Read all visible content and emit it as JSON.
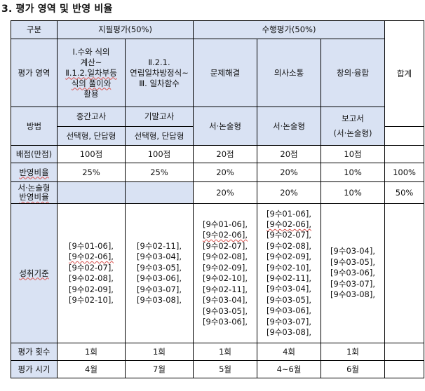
{
  "heading": "3. 평가 영역 및 반영 비율",
  "headers": {
    "division": "구분",
    "written": "지필평가(50%)",
    "performance": "수행평가(50%)",
    "total": "합계"
  },
  "area": {
    "label": "평가 영역",
    "written1": [
      "Ⅰ.수와 식의",
      "계산~",
      "Ⅱ.1.2.일차부등",
      "식의 풀이와",
      "활용"
    ],
    "written2": [
      "Ⅱ.2.1.",
      "연립일차방정식~",
      "Ⅲ. 일차함수"
    ],
    "perf1": "문제해결",
    "perf2": "의사소통",
    "perf3": "창의·융합"
  },
  "method": {
    "label": "방법",
    "midterm": "중간고사",
    "final": "기말고사",
    "written_type": "선택형, 단답형",
    "perf1": "서·논술형",
    "perf2": "서·논술형",
    "perf3": [
      "보고서",
      "(서·논술형)"
    ]
  },
  "score": {
    "label": "배점(만점)",
    "values": [
      "100점",
      "100점",
      "20점",
      "20점",
      "10점"
    ]
  },
  "ratio": {
    "label": "반영비율",
    "values": [
      "25%",
      "25%",
      "20%",
      "20%",
      "10%"
    ],
    "total": "100%"
  },
  "essay_ratio": {
    "label": [
      "서·논술형",
      "반영비율"
    ],
    "values": [
      "20%",
      "20%",
      "10%"
    ],
    "total": "50%"
  },
  "standards": {
    "label": "성취기준",
    "col1": [
      "[9수01-06],",
      "[9수02-06],",
      "[9수02-07],",
      "[9수02-08],",
      "[9수02-09],",
      "[9수02-10],"
    ],
    "col2": [
      "[9수02-11],",
      "[9수03-04],",
      "[9수03-05],",
      "[9수03-06],",
      "[9수03-07],",
      "[9수03-08],"
    ],
    "col3": [
      "[9수01-06],",
      "[9수02-06],",
      "[9수02-07],",
      "[9수02-08],",
      "[9수02-09],",
      "[9수02-10],",
      "[9수02-11],",
      "[9수03-04],",
      "[9수03-05],",
      "[9수03-06],"
    ],
    "col4": [
      "[9수01-06],",
      "[9수02-06],",
      "[9수02-07],",
      "[9수02-08],",
      "[9수02-09],",
      "[9수02-10],",
      "[9수02-11],",
      "[9수03-04],",
      "[9수03-05],",
      "[9수03-06],",
      "[9수03-07],",
      "[9수03-08],"
    ],
    "col5": [
      "[9수03-04],",
      "[9수03-05],",
      "[9수03-06],",
      "[9수03-07],",
      "[9수03-08],"
    ]
  },
  "count": {
    "label": "평가 횟수",
    "values": [
      "1회",
      "1회",
      "1회",
      "4회",
      "1회"
    ]
  },
  "timing": {
    "label": "평가 시기",
    "values": [
      "4월",
      "7월",
      "5월",
      "4~6월",
      "6월"
    ]
  }
}
